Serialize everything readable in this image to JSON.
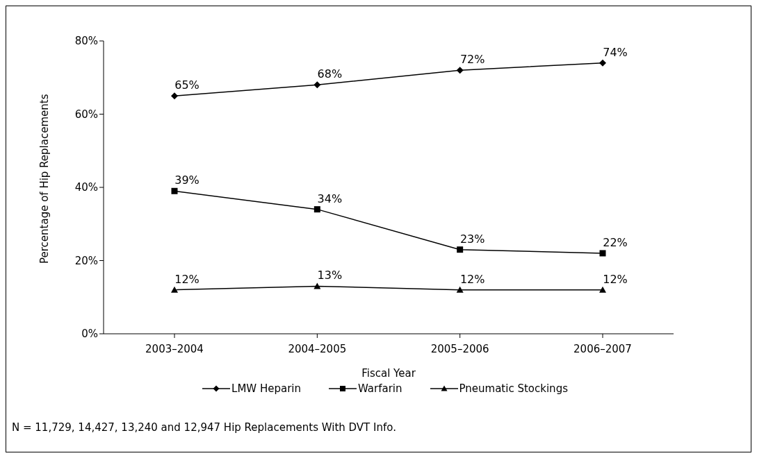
{
  "chart_data": {
    "type": "line",
    "xlabel": "Fiscal Year",
    "ylabel": "Percentage of Hip Replacements",
    "categories": [
      "2003–2004",
      "2004–2005",
      "2005–2006",
      "2006–2007"
    ],
    "series": [
      {
        "name": "LMW Heparin",
        "color": "#000000",
        "marker": "diamond",
        "values": [
          65,
          68,
          72,
          74
        ],
        "value_labels": [
          "65%",
          "68%",
          "72%",
          "74%"
        ]
      },
      {
        "name": "Warfarin",
        "color": "#000000",
        "marker": "square",
        "values": [
          39,
          34,
          23,
          22
        ],
        "value_labels": [
          "39%",
          "34%",
          "23%",
          "22%"
        ]
      },
      {
        "name": "Pneumatic Stockings",
        "color": "#000000",
        "marker": "triangle",
        "values": [
          12,
          13,
          12,
          12
        ],
        "value_labels": [
          "12%",
          "13%",
          "12%",
          "12%"
        ]
      }
    ],
    "ylim": [
      0,
      80
    ],
    "yticks": [
      {
        "value": 0,
        "label": "0%"
      },
      {
        "value": 20,
        "label": "20%"
      },
      {
        "value": 40,
        "label": "40%"
      },
      {
        "value": 60,
        "label": "60%"
      },
      {
        "value": 80,
        "label": "80%"
      }
    ],
    "grid": false,
    "legend": "bottom",
    "line_style": "solid",
    "annotations": [
      "N = 11,729, 14,427, 13,240 and 12,947 Hip Replacements With DVT Info."
    ]
  }
}
